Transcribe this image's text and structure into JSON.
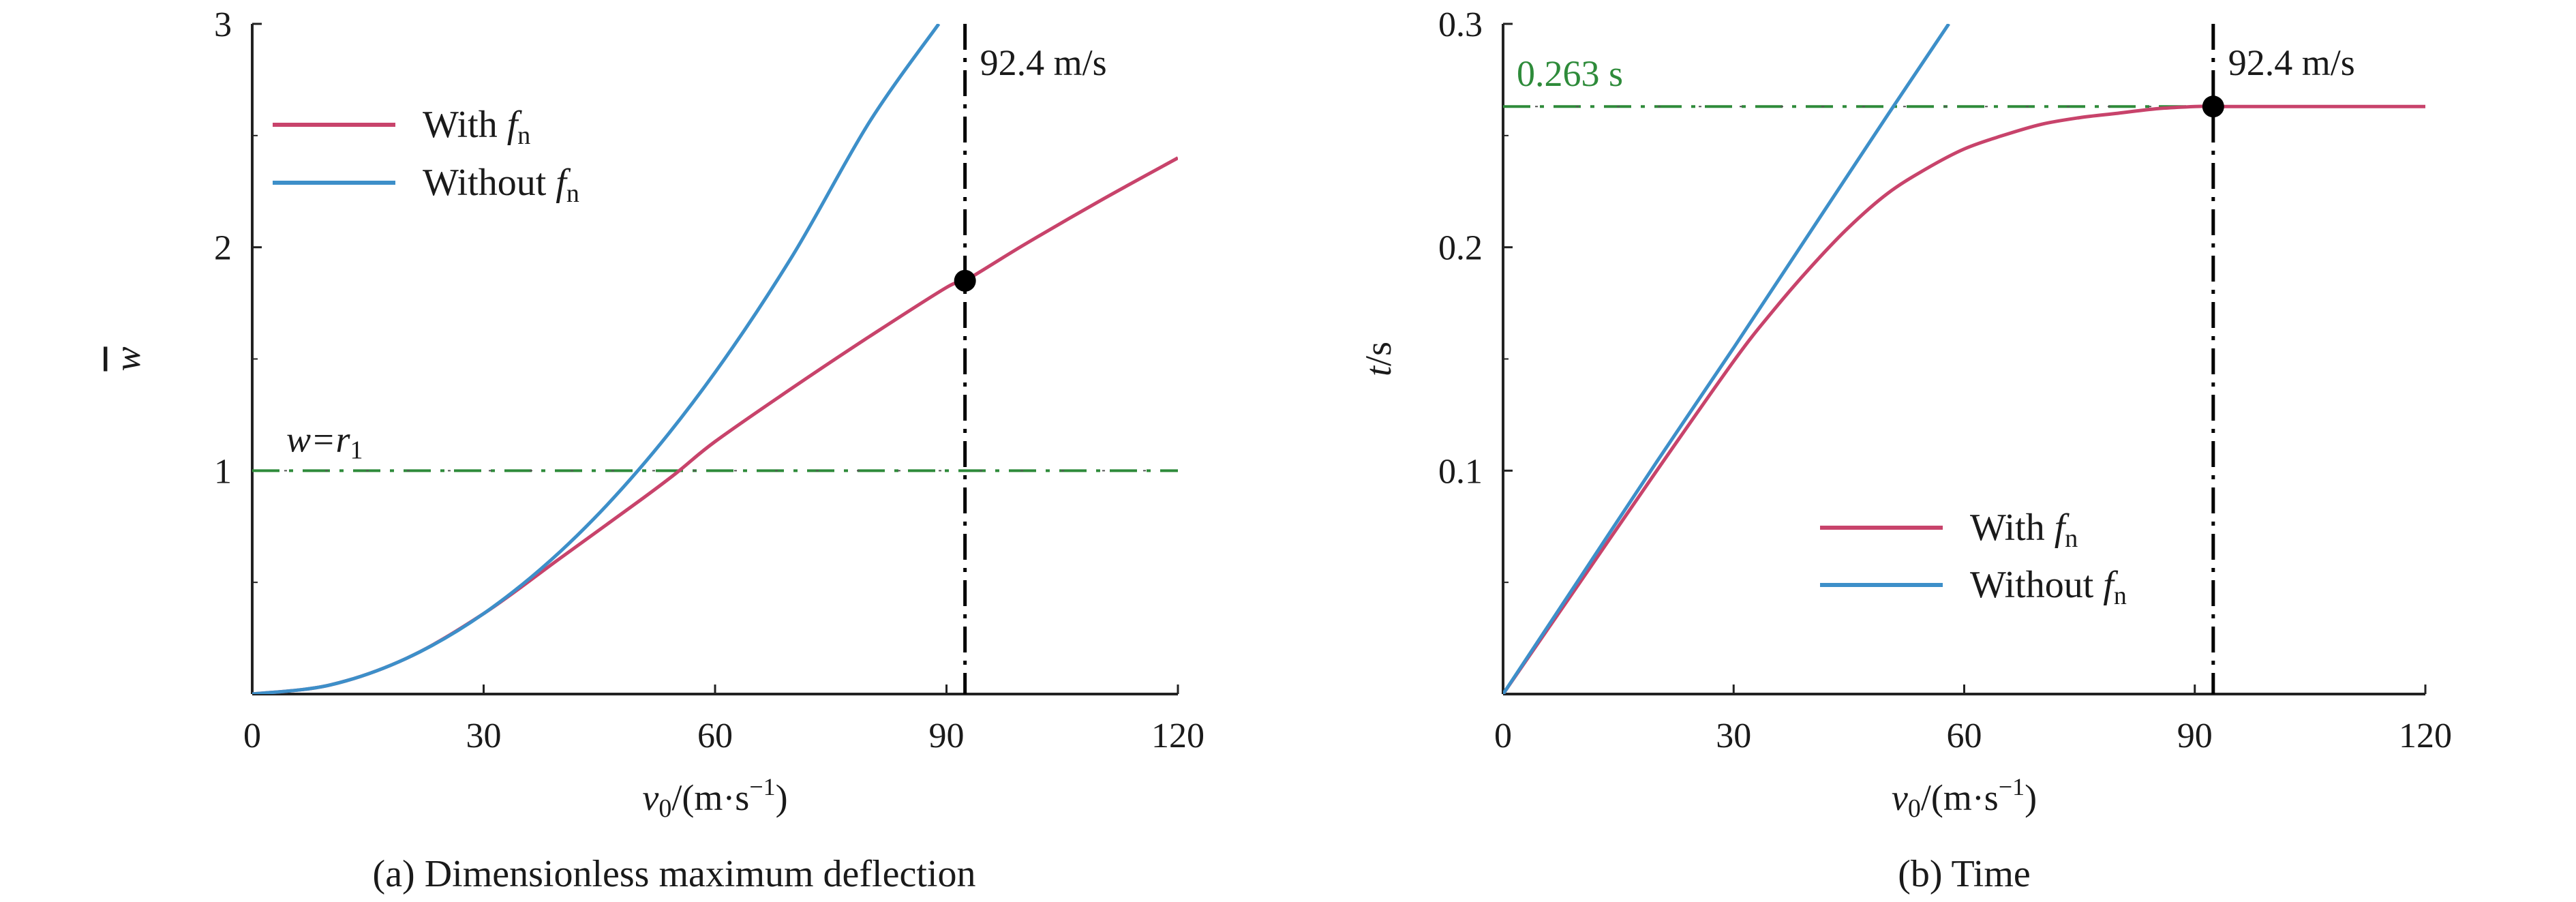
{
  "chart_data": [
    {
      "type": "line",
      "caption": "(a) Dimensionless maximum deflection",
      "xlabel": {
        "main": "v",
        "sub": "0",
        "rest": "/(m·s",
        "sup": "−1",
        "end": ")"
      },
      "ylabel": "w",
      "xlim": [
        0,
        120
      ],
      "ylim": [
        0,
        3
      ],
      "xticks": [
        "0",
        "30",
        "60",
        "90",
        "120"
      ],
      "yticks": [
        "1",
        "2",
        "3"
      ],
      "legend_position": "top-left",
      "series": [
        {
          "name": "With f_n",
          "legend": {
            "prefix": "With ",
            "symbol": "f",
            "sub": "n"
          },
          "color": "#c8436b",
          "x": [
            0,
            10,
            20,
            30,
            40,
            50,
            55,
            60,
            70,
            80,
            90,
            92.4,
            100,
            110,
            120
          ],
          "y": [
            0,
            0.04,
            0.16,
            0.36,
            0.61,
            0.86,
            0.99,
            1.13,
            1.37,
            1.6,
            1.82,
            1.85,
            2.01,
            2.21,
            2.4
          ]
        },
        {
          "name": "Without f_n",
          "legend": {
            "prefix": "Without ",
            "symbol": "f",
            "sub": "n"
          },
          "color": "#3d8fc9",
          "x": [
            0,
            10,
            20,
            30,
            40,
            50,
            60,
            70,
            80,
            89
          ],
          "y": [
            0,
            0.04,
            0.16,
            0.36,
            0.64,
            1.0,
            1.44,
            1.96,
            2.56,
            3.0
          ]
        }
      ],
      "reference_lines": {
        "horizontal": {
          "y": 1,
          "label": {
            "main": "w=r",
            "sub": "1"
          },
          "color": "#2e8b3a"
        },
        "vertical": {
          "x": 92.4,
          "label": "92.4 m/s",
          "color": "#000000"
        }
      },
      "marker": {
        "x": 92.4,
        "y": 1.85
      }
    },
    {
      "type": "line",
      "caption": "(b) Time",
      "xlabel": {
        "main": "v",
        "sub": "0",
        "rest": "/(m·s",
        "sup": "−1",
        "end": ")"
      },
      "ylabel": "t/s",
      "xlim": [
        0,
        120
      ],
      "ylim": [
        0,
        0.3
      ],
      "xticks": [
        "0",
        "30",
        "60",
        "90",
        "120"
      ],
      "yticks": [
        "0.1",
        "0.2",
        "0.3"
      ],
      "legend_position": "bottom-right",
      "series": [
        {
          "name": "With f_n",
          "legend": {
            "prefix": "With ",
            "symbol": "f",
            "sub": "n"
          },
          "color": "#c8436b",
          "x": [
            0,
            10,
            20,
            30,
            35,
            40,
            45,
            50,
            55,
            60,
            65,
            70,
            75,
            80,
            85,
            90,
            92.4,
            100,
            110,
            120
          ],
          "y": [
            0,
            0.05,
            0.1,
            0.149,
            0.171,
            0.191,
            0.209,
            0.224,
            0.235,
            0.244,
            0.25,
            0.255,
            0.258,
            0.26,
            0.262,
            0.263,
            0.263,
            0.263,
            0.263,
            0.263
          ]
        },
        {
          "name": "Without f_n",
          "legend": {
            "prefix": "Without ",
            "symbol": "f",
            "sub": "n"
          },
          "color": "#3d8fc9",
          "x": [
            0,
            10,
            20,
            30,
            40,
            50,
            58
          ],
          "y": [
            0,
            0.052,
            0.104,
            0.155,
            0.207,
            0.259,
            0.3
          ]
        }
      ],
      "reference_lines": {
        "horizontal": {
          "y": 0.263,
          "label": "0.263 s",
          "color": "#2e8b3a"
        },
        "vertical": {
          "x": 92.4,
          "label": "92.4 m/s",
          "color": "#000000"
        }
      },
      "marker": {
        "x": 92.4,
        "y": 0.263
      }
    }
  ]
}
